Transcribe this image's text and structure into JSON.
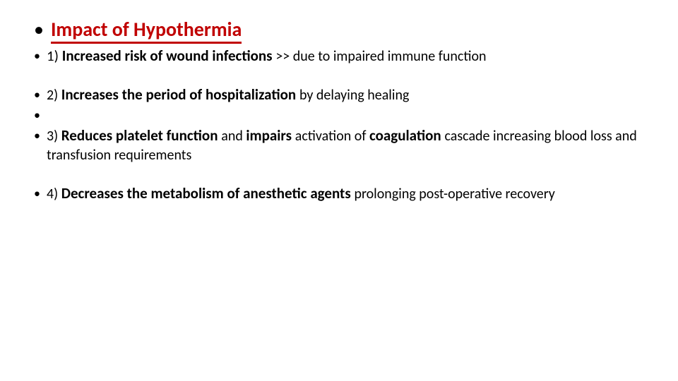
{
  "colors": {
    "title": "#c00000",
    "underline": "#c00000",
    "text": "#000000",
    "background": "#ffffff"
  },
  "fonts": {
    "title_size": 28,
    "body_size": 21,
    "small_size": 20
  },
  "title": "Impact  of  Hypothermia",
  "items": {
    "p1_prefix": "1) ",
    "p1_bold": "Increased  risk  of  wound  infections ",
    "p1_small": ">>   due  to impaired immune function",
    "p2_prefix": "2)   ",
    "p2_bold": "Increases  the  period  of  hospitalization  ",
    "p2_rest": "by delaying healing",
    "p3_prefix": "3)  ",
    "p3_bold1": "Reduces  platelet  function ",
    "p3_mid1": "and  ",
    "p3_bold2": "impairs ",
    "p3_mid2": "activation  of  ",
    "p3_bold3": "coagulation ",
    "p3_rest": "cascade increasing  blood  loss  and  transfusion requirements",
    "p4_prefix": "4)   ",
    "p4_bold": "Decreases  the  metabolism  of  anesthetic agents ",
    "p4_rest": "prolonging  post-operative recovery"
  }
}
